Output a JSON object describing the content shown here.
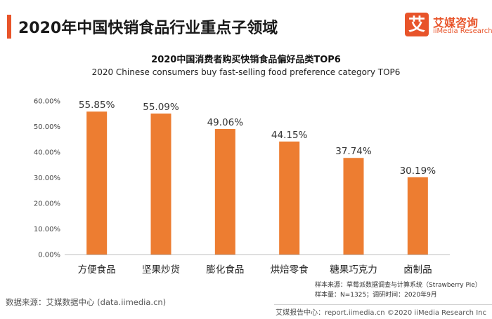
{
  "header": {
    "title": "2020年中国快销食品行业重点子领域",
    "logo_mark": "艾",
    "logo_cn": "艾媒咨询",
    "logo_en": "iiMedia Research"
  },
  "chart_data": {
    "type": "bar",
    "title": "2020中国消费者购买快销食品偏好品类TOP6",
    "subtitle": "2020 Chinese consumers buy fast-selling food preference category TOP6",
    "categories": [
      "方便食品",
      "坚果炒货",
      "膨化食品",
      "烘焙零食",
      "糖果巧克力",
      "卤制品"
    ],
    "values": [
      55.85,
      55.09,
      49.06,
      44.15,
      37.74,
      30.19
    ],
    "data_labels": [
      "55.85%",
      "55.09%",
      "49.06%",
      "44.15%",
      "37.74%",
      "30.19%"
    ],
    "y_ticks": [
      "0.00%",
      "10.00%",
      "20.00%",
      "30.00%",
      "40.00%",
      "50.00%",
      "60.00%"
    ],
    "ylim": [
      0,
      60
    ],
    "bar_color": "#ed7d31",
    "grid": false,
    "legend": "none"
  },
  "notes": {
    "sample_source": "样本来源：草莓派数据调查与计算系统（Strawberry Pie）",
    "sample_size": "样本量：N=1325；调研时间：2020年9月"
  },
  "source": "数据来源：艾媒数据中心 (data.iimedia.cn)",
  "footer": "艾媒报告中心：report.iimedia.cn  ©2020  iiMedia Research  Inc"
}
